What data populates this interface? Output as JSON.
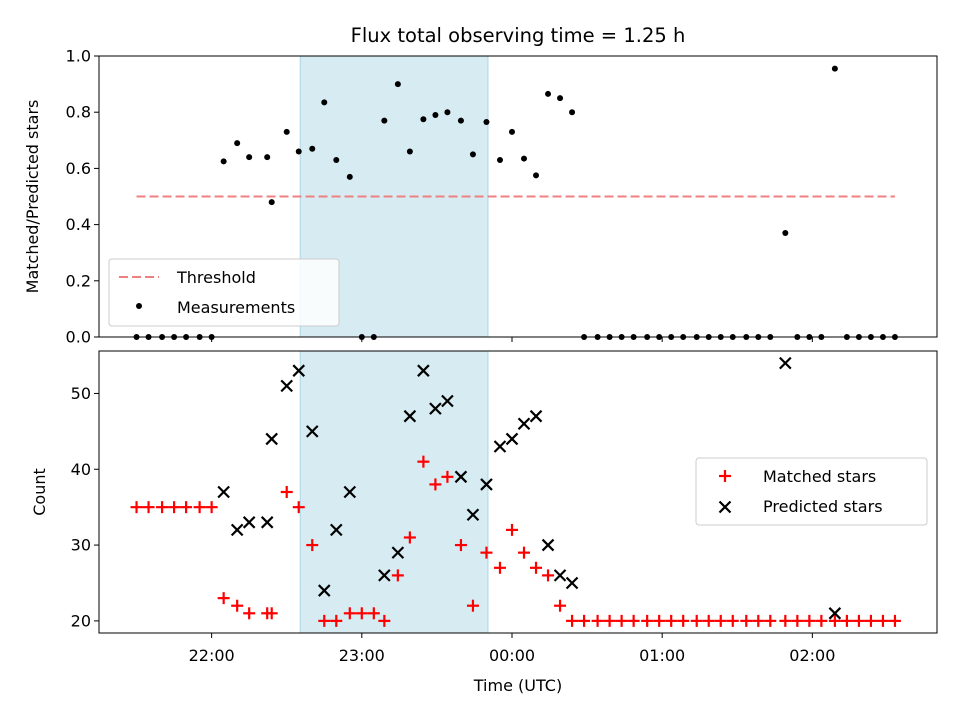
{
  "chart_data": [
    {
      "type": "scatter",
      "title": "Flux total observing time = 1.25 h",
      "ylabel": "Matched/Predicted stars",
      "ylim": [
        0,
        1.0
      ],
      "yticks": [
        "0.0",
        "0.2",
        "0.4",
        "0.6",
        "0.8",
        "1.0"
      ],
      "x_unit": "hours relative to 00:00 UTC",
      "shaded_span": [
        -1.41,
        -0.16
      ],
      "threshold": {
        "name": "Threshold",
        "value": 0.5,
        "x_range": [
          -2.5,
          2.55
        ],
        "color": "#f08080"
      },
      "legend": {
        "position": "lower left",
        "entries": [
          "Threshold",
          "Measurements"
        ]
      },
      "series": [
        {
          "name": "Measurements",
          "color": "#000000",
          "points": [
            [
              -2.5,
              0.0
            ],
            [
              -2.42,
              0.0
            ],
            [
              -2.33,
              0.0
            ],
            [
              -2.25,
              0.0
            ],
            [
              -2.17,
              0.0
            ],
            [
              -2.08,
              0.0
            ],
            [
              -2.0,
              0.0
            ],
            [
              -1.92,
              0.625
            ],
            [
              -1.83,
              0.69
            ],
            [
              -1.75,
              0.64
            ],
            [
              -1.63,
              0.64
            ],
            [
              -1.6,
              0.48
            ],
            [
              -1.5,
              0.73
            ],
            [
              -1.42,
              0.66
            ],
            [
              -1.33,
              0.67
            ],
            [
              -1.25,
              0.835
            ],
            [
              -1.17,
              0.63
            ],
            [
              -1.08,
              0.57
            ],
            [
              -1.0,
              0.0
            ],
            [
              -0.92,
              0.0
            ],
            [
              -0.85,
              0.77
            ],
            [
              -0.76,
              0.9
            ],
            [
              -0.68,
              0.66
            ],
            [
              -0.59,
              0.775
            ],
            [
              -0.51,
              0.79
            ],
            [
              -0.43,
              0.8
            ],
            [
              -0.34,
              0.77
            ],
            [
              -0.26,
              0.65
            ],
            [
              -0.17,
              0.765
            ],
            [
              -0.08,
              0.63
            ],
            [
              0.0,
              0.73
            ],
            [
              0.08,
              0.635
            ],
            [
              0.16,
              0.575
            ],
            [
              0.24,
              0.865
            ],
            [
              0.32,
              0.85
            ],
            [
              0.4,
              0.8
            ],
            [
              0.48,
              0.0
            ],
            [
              0.57,
              0.0
            ],
            [
              0.65,
              0.0
            ],
            [
              0.73,
              0.0
            ],
            [
              0.81,
              0.0
            ],
            [
              0.9,
              0.0
            ],
            [
              0.98,
              0.0
            ],
            [
              1.06,
              0.0
            ],
            [
              1.14,
              0.0
            ],
            [
              1.23,
              0.0
            ],
            [
              1.31,
              0.0
            ],
            [
              1.39,
              0.0
            ],
            [
              1.47,
              0.0
            ],
            [
              1.56,
              0.0
            ],
            [
              1.64,
              0.0
            ],
            [
              1.72,
              0.0
            ],
            [
              1.82,
              0.37
            ],
            [
              1.9,
              0.0
            ],
            [
              1.98,
              0.0
            ],
            [
              2.06,
              0.0
            ],
            [
              2.15,
              0.955
            ],
            [
              2.23,
              0.0
            ],
            [
              2.31,
              0.0
            ],
            [
              2.39,
              0.0
            ],
            [
              2.47,
              0.0
            ],
            [
              2.55,
              0.0
            ]
          ]
        }
      ]
    },
    {
      "type": "scatter",
      "xlabel": "Time (UTC)",
      "ylabel": "Count",
      "xticks": [
        {
          "value": -2,
          "label": "22:00"
        },
        {
          "value": -1,
          "label": "23:00"
        },
        {
          "value": 0,
          "label": "00:00"
        },
        {
          "value": 1,
          "label": "01:00"
        },
        {
          "value": 2,
          "label": "02:00"
        }
      ],
      "xlim": [
        -2.75,
        2.83
      ],
      "ylim": [
        18.4,
        55.6
      ],
      "yticks": [
        "20",
        "30",
        "40",
        "50"
      ],
      "shaded_span": [
        -1.41,
        -0.16
      ],
      "legend": {
        "position": "center right",
        "entries": [
          "Matched stars",
          "Predicted stars"
        ]
      },
      "series": [
        {
          "name": "Matched stars",
          "marker": "+",
          "color": "#ff0000",
          "points": [
            [
              -2.5,
              35
            ],
            [
              -2.42,
              35
            ],
            [
              -2.33,
              35
            ],
            [
              -2.25,
              35
            ],
            [
              -2.17,
              35
            ],
            [
              -2.08,
              35
            ],
            [
              -2.0,
              35
            ],
            [
              -1.92,
              23
            ],
            [
              -1.83,
              22
            ],
            [
              -1.75,
              21
            ],
            [
              -1.63,
              21
            ],
            [
              -1.6,
              21
            ],
            [
              -1.5,
              37
            ],
            [
              -1.42,
              35
            ],
            [
              -1.33,
              30
            ],
            [
              -1.25,
              20
            ],
            [
              -1.17,
              20
            ],
            [
              -1.08,
              21
            ],
            [
              -1.0,
              21
            ],
            [
              -0.92,
              21
            ],
            [
              -0.85,
              20
            ],
            [
              -0.76,
              26
            ],
            [
              -0.68,
              31
            ],
            [
              -0.59,
              41
            ],
            [
              -0.51,
              38
            ],
            [
              -0.43,
              39
            ],
            [
              -0.34,
              30
            ],
            [
              -0.26,
              22
            ],
            [
              -0.17,
              29
            ],
            [
              -0.08,
              27
            ],
            [
              0.0,
              32
            ],
            [
              0.08,
              29
            ],
            [
              0.16,
              27
            ],
            [
              0.24,
              26
            ],
            [
              0.32,
              22
            ],
            [
              0.4,
              20
            ],
            [
              0.48,
              20
            ],
            [
              0.57,
              20
            ],
            [
              0.65,
              20
            ],
            [
              0.73,
              20
            ],
            [
              0.81,
              20
            ],
            [
              0.9,
              20
            ],
            [
              0.98,
              20
            ],
            [
              1.06,
              20
            ],
            [
              1.14,
              20
            ],
            [
              1.23,
              20
            ],
            [
              1.31,
              20
            ],
            [
              1.39,
              20
            ],
            [
              1.47,
              20
            ],
            [
              1.56,
              20
            ],
            [
              1.64,
              20
            ],
            [
              1.72,
              20
            ],
            [
              1.82,
              20
            ],
            [
              1.9,
              20
            ],
            [
              1.98,
              20
            ],
            [
              2.06,
              20
            ],
            [
              2.15,
              20
            ],
            [
              2.23,
              20
            ],
            [
              2.31,
              20
            ],
            [
              2.39,
              20
            ],
            [
              2.47,
              20
            ],
            [
              2.55,
              20
            ]
          ]
        },
        {
          "name": "Predicted stars",
          "marker": "x",
          "color": "#000000",
          "points": [
            [
              -1.92,
              37
            ],
            [
              -1.83,
              32
            ],
            [
              -1.75,
              33
            ],
            [
              -1.63,
              33
            ],
            [
              -1.6,
              44
            ],
            [
              -1.5,
              51
            ],
            [
              -1.42,
              53
            ],
            [
              -1.33,
              45
            ],
            [
              -1.25,
              24
            ],
            [
              -1.17,
              32
            ],
            [
              -1.08,
              37
            ],
            [
              -0.85,
              26
            ],
            [
              -0.76,
              29
            ],
            [
              -0.68,
              47
            ],
            [
              -0.59,
              53
            ],
            [
              -0.51,
              48
            ],
            [
              -0.43,
              49
            ],
            [
              -0.34,
              39
            ],
            [
              -0.26,
              34
            ],
            [
              -0.17,
              38
            ],
            [
              -0.08,
              43
            ],
            [
              0.0,
              44
            ],
            [
              0.08,
              46
            ],
            [
              0.16,
              47
            ],
            [
              0.24,
              30
            ],
            [
              0.32,
              26
            ],
            [
              0.4,
              25
            ],
            [
              1.82,
              54
            ],
            [
              2.15,
              21
            ]
          ]
        }
      ]
    }
  ],
  "colors": {
    "shade": "#add8e6",
    "threshold": "#f08080",
    "matched": "#ff0000",
    "predicted": "#000000"
  }
}
